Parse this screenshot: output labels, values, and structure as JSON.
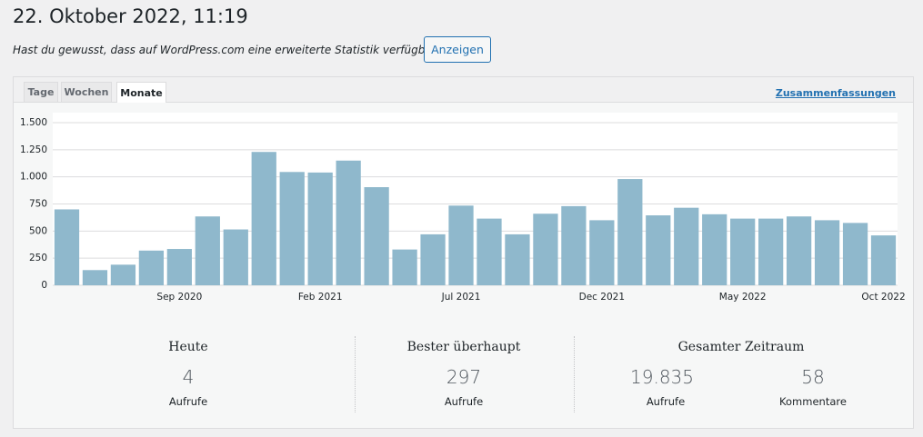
{
  "header": {
    "title": "22. Oktober 2022, 11:19",
    "notice": "Hast du gewusst, dass auf WordPress.com eine erweiterte Statistik verfügbar ist?",
    "button": "Anzeigen"
  },
  "tabs": [
    "Tage",
    "Wochen",
    "Monate"
  ],
  "summary_link": "Zusammenfassungen",
  "chart_data": {
    "type": "bar",
    "categories": [
      null,
      null,
      null,
      null,
      "Sep 2020",
      null,
      null,
      null,
      null,
      "Feb 2021",
      null,
      null,
      null,
      null,
      "Jul 2021",
      null,
      null,
      null,
      null,
      "Dec 2021",
      null,
      null,
      null,
      null,
      "May 2022",
      null,
      null,
      null,
      null,
      "Oct 2022"
    ],
    "values": [
      700,
      140,
      190,
      320,
      335,
      635,
      515,
      1230,
      1045,
      1040,
      1150,
      905,
      330,
      470,
      735,
      615,
      470,
      660,
      730,
      600,
      980,
      645,
      715,
      655,
      615,
      615,
      635,
      600,
      575,
      460
    ],
    "color": "#8fb8cc",
    "ylim": [
      0,
      1500
    ],
    "yticks": [
      0,
      250,
      500,
      750,
      {
        "value": 1000,
        "label": "1.000"
      },
      {
        "value": 1250,
        "label": "1.250"
      },
      {
        "value": 1500,
        "label": "1.500"
      }
    ],
    "grid": true
  },
  "stats": [
    {
      "title": "Heute",
      "items": [
        {
          "value": "4",
          "label": "Aufrufe"
        }
      ]
    },
    {
      "title": "Bester überhaupt",
      "items": [
        {
          "value": "297",
          "label": "Aufrufe"
        }
      ]
    },
    {
      "title": "Gesamter Zeitraum",
      "items": [
        {
          "value": "19.835",
          "label": "Aufrufe"
        },
        {
          "value": "58",
          "label": "Kommentare"
        }
      ]
    }
  ]
}
